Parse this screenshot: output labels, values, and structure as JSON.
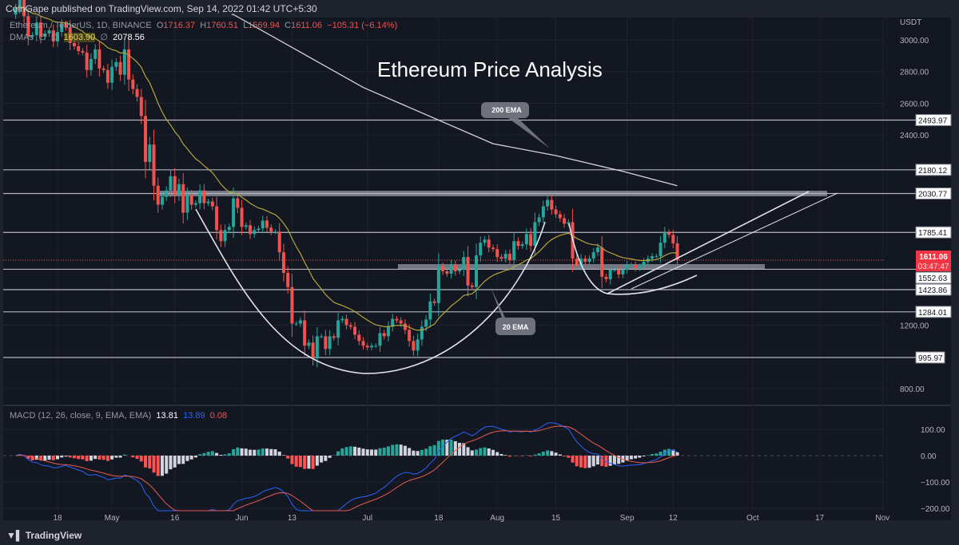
{
  "header": {
    "published": "CoinGape published on TradingView.com, Sep 14, 2022 01:42 UTC+5:30",
    "symbol": "Ethereum / TetherUS, 1D, BINANCE",
    "o_label": "O",
    "o": "1716.37",
    "h_label": "H",
    "h": "1760.51",
    "l_label": "L",
    "l": "1569.94",
    "c_label": "C",
    "c": "1611.06",
    "change": "−105.31 (−6.14%)",
    "dmas_label": "DMAs",
    "dma_empty1": "∅",
    "dma_empty2": "∅",
    "dma_20": "1603.90",
    "dma_empty3": "∅",
    "dma_200": "2078.56"
  },
  "macd_legend": {
    "label": "MACD (12, 26, close, 9, EMA, EMA)",
    "hist": "13.81",
    "macd": "13.89",
    "signal": "0.08"
  },
  "footer": {
    "brand": "TradingView"
  },
  "colors": {
    "bg": "#131722",
    "up": "#26a69a",
    "down": "#ef5350",
    "ema20": "#b5a53a",
    "ema200": "#d1d4dc",
    "macd": "#2962ff",
    "signal": "#e65b4f"
  },
  "chart_data": {
    "type": "candlestick",
    "title": "Ethereum Price Analysis",
    "currency": "USDT",
    "start_date": "2022-04-08",
    "closes": [
      3200,
      3260,
      3150,
      3020,
      3030,
      3110,
      3020,
      3040,
      3060,
      2990,
      3050,
      3100,
      3080,
      2980,
      2960,
      2930,
      2920,
      2810,
      2880,
      2940,
      2820,
      2810,
      2730,
      2830,
      2860,
      2780,
      2940,
      2750,
      2690,
      2640,
      2520,
      2230,
      2340,
      2080,
      1960,
      2010,
      2050,
      2140,
      2020,
      2090,
      1910,
      2020,
      1960,
      1970,
      2050,
      1970,
      1980,
      1950,
      1800,
      1730,
      1800,
      1820,
      2000,
      1940,
      1820,
      1830,
      1775,
      1800,
      1810,
      1860,
      1815,
      1790,
      1790,
      1660,
      1530,
      1440,
      1210,
      1210,
      1230,
      1070,
      1090,
      990,
      1130,
      1130,
      1050,
      1130,
      1120,
      1230,
      1240,
      1200,
      1190,
      1140,
      1100,
      1070,
      1060,
      1070,
      1070,
      1150,
      1130,
      1190,
      1240,
      1230,
      1210,
      1170,
      1100,
      1040,
      1110,
      1190,
      1235,
      1350,
      1340,
      1570,
      1540,
      1525,
      1580,
      1540,
      1550,
      1630,
      1450,
      1440,
      1640,
      1720,
      1740,
      1690,
      1680,
      1630,
      1620,
      1650,
      1610,
      1730,
      1700,
      1710,
      1775,
      1700,
      1850,
      1880,
      1950,
      1990,
      1930,
      1900,
      1875,
      1840,
      1850,
      1620,
      1575,
      1620,
      1600,
      1620,
      1660,
      1690,
      1505,
      1490,
      1550,
      1550,
      1520,
      1550,
      1580,
      1580,
      1560,
      1570,
      1600,
      1620,
      1635,
      1635,
      1720,
      1785,
      1770,
      1716.37,
      1611.06
    ],
    "last_ohlc": {
      "open": 1716.37,
      "high": 1760.51,
      "low": 1569.94,
      "close": 1611.06
    },
    "ema200_points": [
      [
        "2022-05-30",
        3160
      ],
      [
        "2022-06-30",
        2700
      ],
      [
        "2022-07-31",
        2345
      ],
      [
        "2022-08-15",
        2270
      ],
      [
        "2022-08-31",
        2170
      ],
      [
        "2022-09-13",
        2080
      ]
    ],
    "y_ticks": [
      "3000.00",
      "2800.00",
      "2600.00",
      "2400.00",
      "1200.00",
      "800.00"
    ],
    "y_tick_values": [
      3000,
      2800,
      2600,
      2400,
      1200,
      800
    ],
    "levels": [
      "2493.97",
      "2180.12",
      "2030.77",
      "1785.41",
      "1552.63",
      "1423.86",
      "1284.01",
      "995.97"
    ],
    "level_values": [
      2493.97,
      2180.12,
      2030.77,
      1785.41,
      1552.63,
      1423.86,
      1284.01,
      995.97
    ],
    "last_price": "1611.06",
    "countdown": "03:47:47",
    "x_ticks": [
      [
        "18",
        "2022-04-18"
      ],
      [
        "May",
        "2022-05-01"
      ],
      [
        "16",
        "2022-05-16"
      ],
      [
        "Jun",
        "2022-06-01"
      ],
      [
        "13",
        "2022-06-13"
      ],
      [
        "Jul",
        "2022-07-01"
      ],
      [
        "18",
        "2022-07-18"
      ],
      [
        "Aug",
        "2022-08-01"
      ],
      [
        "15",
        "2022-08-15"
      ],
      [
        "Sep",
        "2022-09-01"
      ],
      [
        "12",
        "2022-09-12"
      ],
      [
        "Oct",
        "2022-10-01"
      ],
      [
        "17",
        "2022-10-17"
      ],
      [
        "Nov",
        "2022-11-01"
      ]
    ],
    "annotations": [
      "200 EMA",
      "20 EMA"
    ],
    "macd_ticks": [
      "100.00",
      "0.00",
      "−100.00",
      "−200.00"
    ],
    "macd_tick_values": [
      100,
      0,
      -100,
      -200
    ]
  }
}
